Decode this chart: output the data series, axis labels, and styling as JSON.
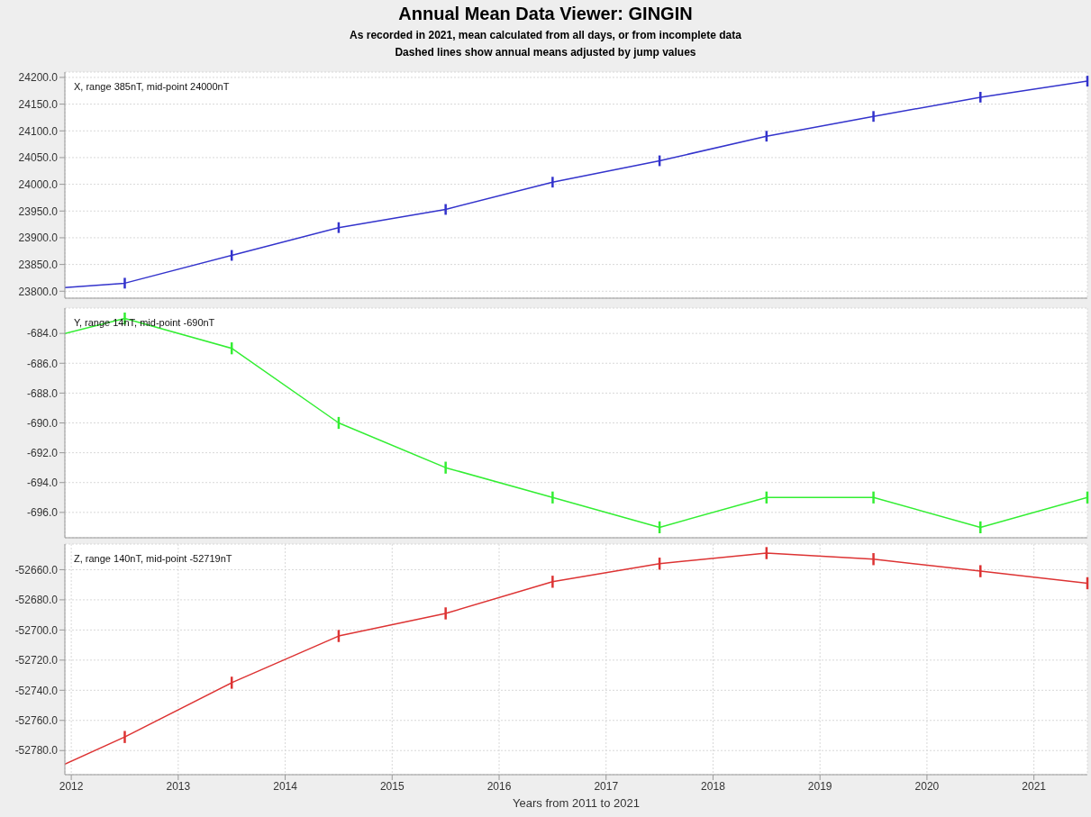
{
  "chart_data": [
    {
      "type": "line",
      "title": "Annual Mean Data Viewer: GINGIN",
      "subtitle": "As recorded in 2021, mean calculated from all days, or from incomplete data",
      "annotations": [
        "Dashed lines show annual means adjusted by jump values",
        "X, range 385nT, mid-point 24000nT"
      ],
      "x": [
        2011.94,
        2012.5,
        2013.5,
        2014.5,
        2015.5,
        2016.5,
        2017.5,
        2018.5,
        2019.5,
        2020.5,
        2021.5
      ],
      "series": [
        {
          "color": "#3333cc",
          "values": [
            23807,
            23815,
            23867,
            23919,
            23953,
            24004,
            24044,
            24090,
            24127,
            24163,
            24193
          ],
          "errors": [
            null,
            10,
            10,
            10,
            10,
            10,
            10,
            10,
            10,
            10,
            10
          ]
        }
      ],
      "xlim": [
        2011.94,
        2021.5
      ],
      "xticks": [
        2012,
        2013,
        2014,
        2015,
        2016,
        2017,
        2018,
        2019,
        2020,
        2021
      ],
      "ylim": [
        23787,
        24210
      ],
      "yticks": [
        {
          "value": 23800,
          "label": "23800.0"
        },
        {
          "value": 23850,
          "label": "23850.0"
        },
        {
          "value": 23900,
          "label": "23900.0"
        },
        {
          "value": 23950,
          "label": "23950.0"
        },
        {
          "value": 24000,
          "label": "24000.0"
        },
        {
          "value": 24050,
          "label": "24050.0"
        },
        {
          "value": 24100,
          "label": "24100.0"
        },
        {
          "value": 24150,
          "label": "24150.0"
        },
        {
          "value": 24200,
          "label": "24200.0"
        }
      ],
      "grid": true,
      "tick_labels": "y"
    },
    {
      "type": "line",
      "annotations": [
        "Y, range 14nT, mid-point -690nT"
      ],
      "x": [
        2011.94,
        2012.5,
        2013.5,
        2014.5,
        2015.5,
        2016.5,
        2017.5,
        2018.5,
        2019.5,
        2020.5,
        2021.5
      ],
      "series": [
        {
          "color": "#33ee33",
          "values": [
            -684,
            -683,
            -685,
            -690,
            -693,
            -695,
            -697,
            -695,
            -695,
            -697,
            -695
          ],
          "errors": [
            null,
            0.4,
            0.4,
            0.4,
            0.4,
            0.4,
            0.4,
            0.4,
            0.4,
            0.4,
            0.4
          ]
        }
      ],
      "xlim": [
        2011.94,
        2021.5
      ],
      "xticks": [
        2012,
        2013,
        2014,
        2015,
        2016,
        2017,
        2018,
        2019,
        2020,
        2021
      ],
      "ylim": [
        -697.7,
        -682.3
      ],
      "yticks": [
        {
          "value": -684,
          "label": "-684.0"
        },
        {
          "value": -686,
          "label": "-686.0"
        },
        {
          "value": -688,
          "label": "-688.0"
        },
        {
          "value": -690,
          "label": "-690.0"
        },
        {
          "value": -692,
          "label": "-692.0"
        },
        {
          "value": -694,
          "label": "-694.0"
        },
        {
          "value": -696,
          "label": "-696.0"
        }
      ],
      "grid": true,
      "tick_labels": "y"
    },
    {
      "type": "line",
      "xlabel": "Years from 2011 to 2021",
      "annotations": [
        "Z, range 140nT, mid-point -52719nT"
      ],
      "x": [
        2011.94,
        2012.5,
        2013.5,
        2014.5,
        2015.5,
        2016.5,
        2017.5,
        2018.5,
        2019.5,
        2020.5,
        2021.5
      ],
      "series": [
        {
          "color": "#dd3333",
          "values": [
            -52789,
            -52771,
            -52735,
            -52704,
            -52689,
            -52668,
            -52656,
            -52649,
            -52653,
            -52661,
            -52669
          ],
          "errors": [
            null,
            4,
            4,
            4,
            4,
            4,
            4,
            4,
            4,
            4,
            4
          ]
        }
      ],
      "xlim": [
        2011.94,
        2021.5
      ],
      "xticks": [
        2012,
        2013,
        2014,
        2015,
        2016,
        2017,
        2018,
        2019,
        2020,
        2021
      ],
      "ylim": [
        -52796,
        -52643
      ],
      "yticks": [
        {
          "value": -52780,
          "label": "-52780.0"
        },
        {
          "value": -52760,
          "label": "-52760.0"
        },
        {
          "value": -52740,
          "label": "-52740.0"
        },
        {
          "value": -52720,
          "label": "-52720.0"
        },
        {
          "value": -52700,
          "label": "-52700.0"
        },
        {
          "value": -52680,
          "label": "-52680.0"
        },
        {
          "value": -52660,
          "label": "-52660.0"
        }
      ],
      "grid": true
    }
  ]
}
